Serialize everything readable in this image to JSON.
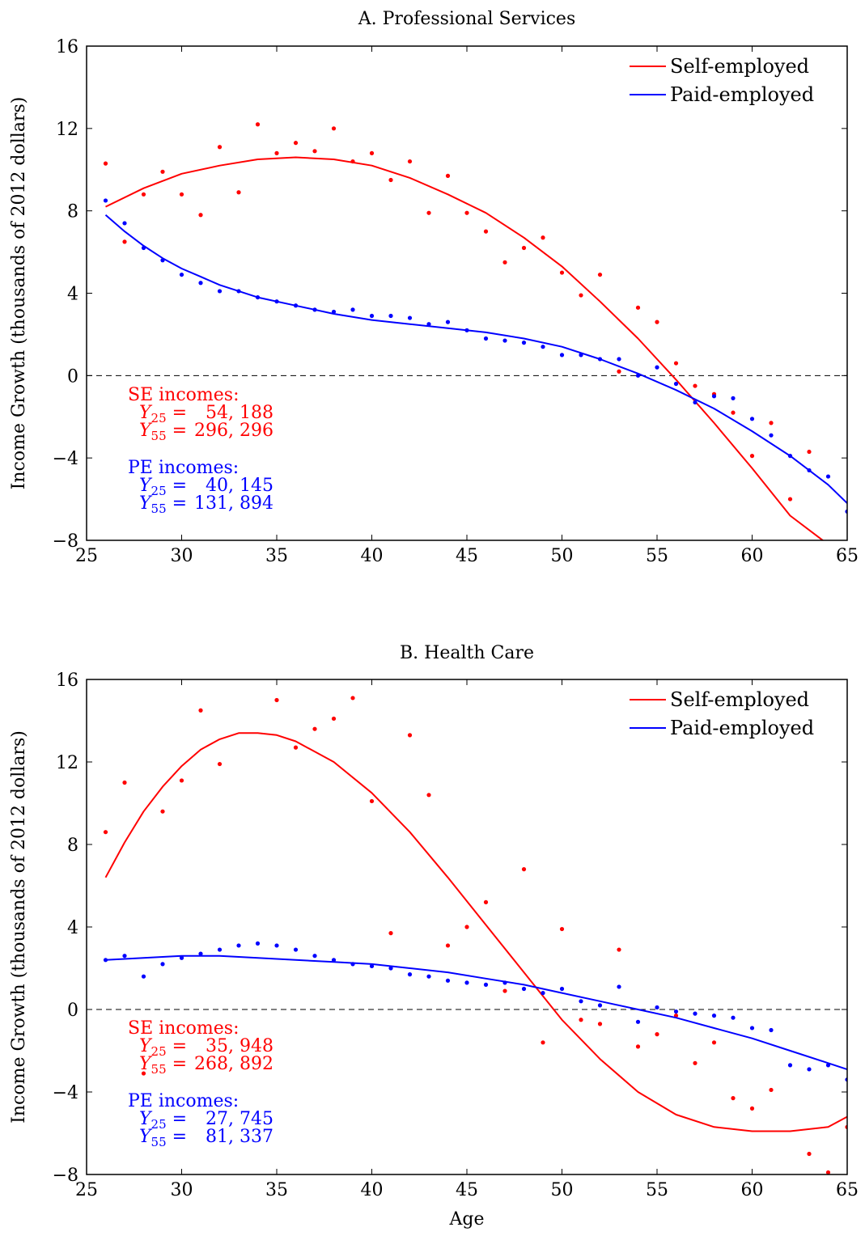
{
  "chart_data": [
    {
      "type": "scatter",
      "title": "A. Professional Services",
      "xlabel": "",
      "ylabel": "Income Growth (thousands of 2012 dollars)",
      "xlim": [
        25,
        65
      ],
      "ylim": [
        -8,
        16
      ],
      "xticks": [
        25,
        30,
        35,
        40,
        45,
        50,
        55,
        60,
        65
      ],
      "yticks": [
        -8,
        -4,
        0,
        4,
        8,
        12,
        16
      ],
      "xtick_labels": [
        "25",
        "30",
        "35",
        "40",
        "45",
        "50",
        "55",
        "60",
        "65"
      ],
      "ytick_labels": [
        "−8",
        "−4",
        "0",
        "4",
        "8",
        "12",
        "16"
      ],
      "zero_line": true,
      "legend_position": "top-right",
      "colors": {
        "self": "#ff0000",
        "paid": "#0000ff"
      },
      "series": [
        {
          "name": "Self-employed",
          "color": "#ff0000",
          "points": {
            "x": [
              26,
              27,
              28,
              29,
              30,
              31,
              32,
              33,
              34,
              35,
              36,
              37,
              38,
              39,
              40,
              41,
              42,
              43,
              44,
              45,
              46,
              47,
              48,
              49,
              50,
              51,
              52,
              53,
              54,
              55,
              56,
              57,
              58,
              59,
              60,
              61,
              62,
              63,
              64,
              65
            ],
            "y": [
              10.3,
              6.5,
              8.8,
              9.9,
              8.8,
              7.8,
              11.1,
              8.9,
              12.2,
              10.8,
              11.3,
              10.9,
              12.0,
              10.4,
              10.8,
              9.5,
              10.4,
              7.9,
              9.7,
              7.9,
              7.0,
              5.5,
              6.2,
              6.7,
              5.0,
              3.9,
              4.9,
              0.2,
              3.3,
              2.6,
              0.6,
              -0.5,
              -0.9,
              -1.8,
              -3.9,
              -2.3,
              -6.0,
              -3.7,
              null,
              null
            ]
          },
          "fit": {
            "x": [
              26,
              28,
              30,
              32,
              34,
              36,
              38,
              40,
              42,
              44,
              46,
              48,
              50,
              52,
              54,
              56,
              58,
              60,
              62,
              64
            ],
            "y": [
              8.2,
              9.1,
              9.8,
              10.2,
              10.5,
              10.6,
              10.5,
              10.2,
              9.6,
              8.8,
              7.9,
              6.7,
              5.3,
              3.6,
              1.8,
              -0.2,
              -2.3,
              -4.5,
              -6.8,
              -8.2
            ]
          }
        },
        {
          "name": "Paid-employed",
          "color": "#0000ff",
          "points": {
            "x": [
              26,
              27,
              28,
              29,
              30,
              31,
              32,
              33,
              34,
              35,
              36,
              37,
              38,
              39,
              40,
              41,
              42,
              43,
              44,
              45,
              46,
              47,
              48,
              49,
              50,
              51,
              52,
              53,
              54,
              55,
              56,
              57,
              58,
              59,
              60,
              61,
              62,
              63,
              64,
              65
            ],
            "y": [
              8.5,
              7.4,
              6.2,
              5.6,
              4.9,
              4.5,
              4.1,
              4.1,
              3.8,
              3.6,
              3.4,
              3.2,
              3.1,
              3.2,
              2.9,
              2.9,
              2.8,
              2.5,
              2.6,
              2.2,
              1.8,
              1.7,
              1.6,
              1.4,
              1.0,
              1.0,
              0.8,
              0.8,
              0.0,
              0.4,
              -0.4,
              -1.3,
              -1.0,
              -1.1,
              -2.1,
              -2.9,
              -3.9,
              -4.6,
              -4.9,
              -6.6
            ]
          },
          "fit": {
            "x": [
              26,
              27,
              28,
              29,
              30,
              31,
              32,
              34,
              36,
              38,
              40,
              42,
              44,
              46,
              48,
              50,
              52,
              54,
              56,
              58,
              60,
              62,
              64,
              65
            ],
            "y": [
              7.8,
              7.0,
              6.3,
              5.7,
              5.2,
              4.8,
              4.4,
              3.8,
              3.4,
              3.0,
              2.7,
              2.5,
              2.3,
              2.1,
              1.8,
              1.4,
              0.8,
              0.1,
              -0.7,
              -1.6,
              -2.7,
              -3.9,
              -5.3,
              -6.2
            ]
          }
        }
      ],
      "annotations": {
        "se_label": "SE incomes:",
        "se_y25": "54, 188",
        "se_y55": "296, 296",
        "pe_label": "PE incomes:",
        "pe_y25": "40, 145",
        "pe_y55": "131, 894"
      }
    },
    {
      "type": "scatter",
      "title": "B. Health Care",
      "xlabel": "Age",
      "ylabel": "Income Growth (thousands of 2012 dollars)",
      "xlim": [
        25,
        65
      ],
      "ylim": [
        -8,
        16
      ],
      "xticks": [
        25,
        30,
        35,
        40,
        45,
        50,
        55,
        60,
        65
      ],
      "yticks": [
        -8,
        -4,
        0,
        4,
        8,
        12,
        16
      ],
      "xtick_labels": [
        "25",
        "30",
        "35",
        "40",
        "45",
        "50",
        "55",
        "60",
        "65"
      ],
      "ytick_labels": [
        "−8",
        "−4",
        "0",
        "4",
        "8",
        "12",
        "16"
      ],
      "zero_line": true,
      "legend_position": "top-right",
      "colors": {
        "self": "#ff0000",
        "paid": "#0000ff"
      },
      "series": [
        {
          "name": "Self-employed",
          "color": "#ff0000",
          "points": {
            "x": [
              26,
              27,
              28,
              29,
              30,
              31,
              32,
              33,
              34,
              35,
              36,
              37,
              38,
              39,
              40,
              41,
              42,
              43,
              44,
              45,
              46,
              47,
              48,
              49,
              50,
              51,
              52,
              53,
              54,
              55,
              56,
              57,
              58,
              59,
              60,
              61,
              62,
              63,
              64,
              65
            ],
            "y": [
              8.6,
              11.0,
              -3.1,
              9.6,
              11.1,
              14.5,
              11.9,
              null,
              null,
              15.0,
              12.7,
              13.6,
              14.1,
              15.1,
              10.1,
              3.7,
              13.3,
              10.4,
              3.1,
              4.0,
              5.2,
              0.9,
              6.8,
              -1.6,
              3.9,
              -0.5,
              -0.7,
              2.9,
              -1.8,
              -1.2,
              -0.3,
              -2.6,
              -1.6,
              -4.3,
              -4.8,
              -3.9,
              null,
              -7.0,
              -7.9,
              -5.7
            ]
          },
          "fit": {
            "x": [
              26,
              27,
              28,
              29,
              30,
              31,
              32,
              33,
              34,
              35,
              36,
              38,
              40,
              42,
              44,
              46,
              48,
              50,
              52,
              54,
              56,
              58,
              60,
              62,
              64,
              65
            ],
            "y": [
              6.4,
              8.1,
              9.6,
              10.8,
              11.8,
              12.6,
              13.1,
              13.4,
              13.4,
              13.3,
              13.0,
              12.0,
              10.5,
              8.6,
              6.4,
              4.1,
              1.8,
              -0.5,
              -2.4,
              -4.0,
              -5.1,
              -5.7,
              -5.9,
              -5.9,
              -5.7,
              -5.2
            ]
          }
        },
        {
          "name": "Paid-employed",
          "color": "#0000ff",
          "points": {
            "x": [
              26,
              27,
              28,
              29,
              30,
              31,
              32,
              33,
              34,
              35,
              36,
              37,
              38,
              39,
              40,
              41,
              42,
              43,
              44,
              45,
              46,
              47,
              48,
              49,
              50,
              51,
              52,
              53,
              54,
              55,
              56,
              57,
              58,
              59,
              60,
              61,
              62,
              63,
              64,
              65
            ],
            "y": [
              2.4,
              2.6,
              1.6,
              2.2,
              2.5,
              2.7,
              2.9,
              3.1,
              3.2,
              3.1,
              2.9,
              2.6,
              2.4,
              2.2,
              2.1,
              2.0,
              1.7,
              1.6,
              1.4,
              1.3,
              1.2,
              1.3,
              1.0,
              0.8,
              1.0,
              0.4,
              0.2,
              1.1,
              -0.6,
              0.1,
              -0.1,
              -0.2,
              -0.3,
              -0.4,
              -0.9,
              -1.0,
              -2.7,
              -2.9,
              -2.7,
              -3.4
            ]
          },
          "fit": {
            "x": [
              26,
              28,
              30,
              32,
              34,
              36,
              38,
              40,
              42,
              44,
              46,
              48,
              50,
              52,
              54,
              56,
              58,
              60,
              62,
              64,
              65
            ],
            "y": [
              2.4,
              2.5,
              2.6,
              2.6,
              2.5,
              2.4,
              2.3,
              2.2,
              2.0,
              1.8,
              1.5,
              1.2,
              0.8,
              0.4,
              0.0,
              -0.4,
              -0.9,
              -1.4,
              -2.0,
              -2.6,
              -2.9
            ]
          }
        }
      ],
      "annotations": {
        "se_label": "SE incomes:",
        "se_y25": "35, 948",
        "se_y55": "268, 892",
        "pe_label": "PE incomes:",
        "pe_y25": "27, 745",
        "pe_y55": "81, 337"
      }
    }
  ]
}
